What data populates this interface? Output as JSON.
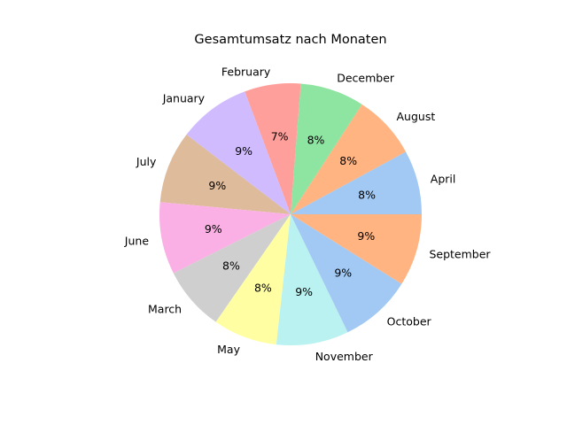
{
  "chart_data": {
    "type": "pie",
    "title": "Gesamtumsatz nach Monaten",
    "start_angle_deg": 0,
    "direction": "counterclockwise",
    "slices": [
      {
        "label": "April",
        "value": 8,
        "pct_label": "8%",
        "color": "#a1c9f4"
      },
      {
        "label": "August",
        "value": 8,
        "pct_label": "8%",
        "color": "#ffb482"
      },
      {
        "label": "December",
        "value": 8,
        "pct_label": "8%",
        "color": "#8de5a1"
      },
      {
        "label": "February",
        "value": 7,
        "pct_label": "7%",
        "color": "#ff9f9b"
      },
      {
        "label": "January",
        "value": 9,
        "pct_label": "9%",
        "color": "#d0bbff"
      },
      {
        "label": "July",
        "value": 9,
        "pct_label": "9%",
        "color": "#debb9b"
      },
      {
        "label": "June",
        "value": 9,
        "pct_label": "9%",
        "color": "#fab0e4"
      },
      {
        "label": "March",
        "value": 8,
        "pct_label": "8%",
        "color": "#cfcfcf"
      },
      {
        "label": "May",
        "value": 8,
        "pct_label": "8%",
        "color": "#fffea3"
      },
      {
        "label": "November",
        "value": 9,
        "pct_label": "9%",
        "color": "#b9f2f0"
      },
      {
        "label": "October",
        "value": 9,
        "pct_label": "9%",
        "color": "#a1c9f4"
      },
      {
        "label": "September",
        "value": 9,
        "pct_label": "9%",
        "color": "#ffb482"
      }
    ]
  }
}
